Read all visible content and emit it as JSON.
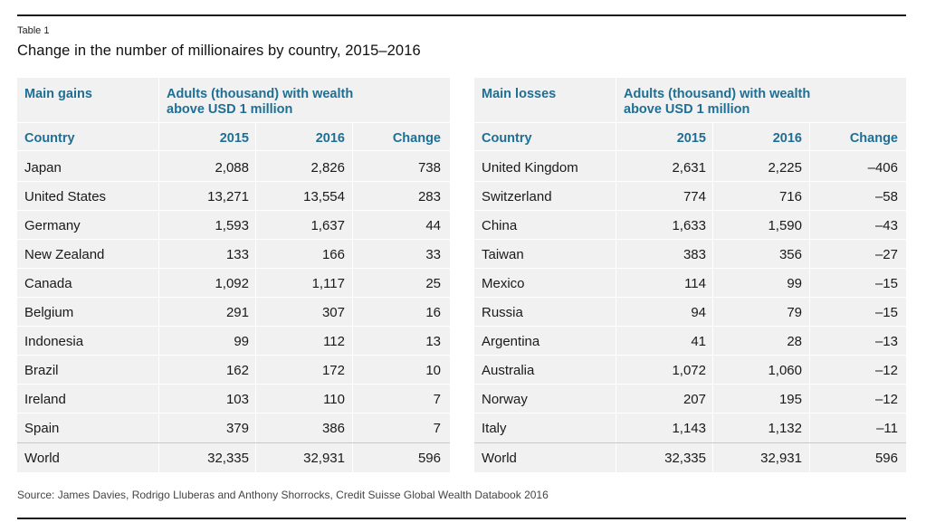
{
  "table_label": "Table 1",
  "title": "Change in the number of millionaires by country, 2015–2016",
  "gains": {
    "group_label": "Main gains",
    "group_header": "Adults (thousand) with wealth above USD 1 million",
    "columns": [
      "Country",
      "2015",
      "2016",
      "Change"
    ],
    "rows": [
      [
        "Japan",
        "2,088",
        "2,826",
        "738"
      ],
      [
        "United States",
        "13,271",
        "13,554",
        "283"
      ],
      [
        "Germany",
        "1,593",
        "1,637",
        "44"
      ],
      [
        "New Zealand",
        "133",
        "166",
        "33"
      ],
      [
        "Canada",
        "1,092",
        "1,117",
        "25"
      ],
      [
        "Belgium",
        "291",
        "307",
        "16"
      ],
      [
        "Indonesia",
        "99",
        "112",
        "13"
      ],
      [
        "Brazil",
        "162",
        "172",
        "10"
      ],
      [
        "Ireland",
        "103",
        "110",
        "7"
      ],
      [
        "Spain",
        "379",
        "386",
        "7"
      ]
    ],
    "world": [
      "World",
      "32,335",
      "32,931",
      "596"
    ]
  },
  "losses": {
    "group_label": "Main losses",
    "group_header": "Adults (thousand) with wealth above USD 1 million",
    "columns": [
      "Country",
      "2015",
      "2016",
      "Change"
    ],
    "rows": [
      [
        "United Kingdom",
        "2,631",
        "2,225",
        "–406"
      ],
      [
        "Switzerland",
        "774",
        "716",
        "–58"
      ],
      [
        "China",
        "1,633",
        "1,590",
        "–43"
      ],
      [
        "Taiwan",
        "383",
        "356",
        "–27"
      ],
      [
        "Mexico",
        "114",
        "99",
        "–15"
      ],
      [
        "Russia",
        "94",
        "79",
        "–15"
      ],
      [
        "Argentina",
        "41",
        "28",
        "–13"
      ],
      [
        "Australia",
        "1,072",
        "1,060",
        "–12"
      ],
      [
        "Norway",
        "207",
        "195",
        "–12"
      ],
      [
        "Italy",
        "1,143",
        "1,132",
        "–11"
      ]
    ],
    "world": [
      "World",
      "32,335",
      "32,931",
      "596"
    ]
  },
  "source": "Source: James Davies, Rodrigo Lluberas and Anthony Shorrocks, Credit Suisse Global Wealth Databook 2016",
  "colors": {
    "header_blue": "#1f6f94",
    "panel_bg": "#f1f1f1"
  }
}
